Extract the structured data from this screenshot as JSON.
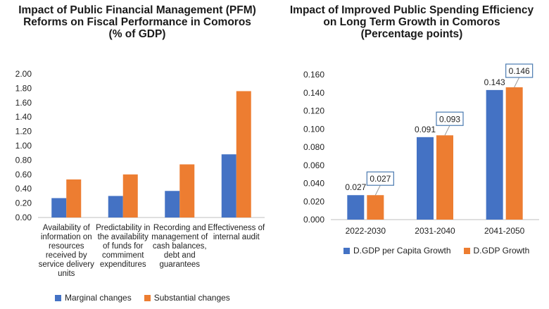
{
  "chart_data": [
    {
      "type": "bar",
      "title_lines": [
        "Impact of Public Financial Management (PFM)",
        "Reforms on Fiscal Performance in Comoros",
        "(% of GDP)"
      ],
      "categories": [
        [
          "Availability of",
          "information on",
          "resources",
          "received by",
          "service delivery",
          "units"
        ],
        [
          "Predictability in",
          "the availability",
          "of funds for",
          "commiment",
          "expenditures"
        ],
        [
          "Recording and",
          "management of",
          "cash balances,",
          "debt and",
          "guarantees"
        ],
        [
          "Effectiveness of",
          "internal audit"
        ]
      ],
      "series": [
        {
          "name": "Marginal changes",
          "color": "#4472C4",
          "values": [
            0.27,
            0.3,
            0.37,
            0.88
          ]
        },
        {
          "name": "Substantial changes",
          "color": "#ED7D31",
          "values": [
            0.53,
            0.6,
            0.74,
            1.76
          ]
        }
      ],
      "ylim": [
        0,
        2.0
      ],
      "yticks": [
        "0.00",
        "0.20",
        "0.40",
        "0.60",
        "0.80",
        "1.00",
        "1.20",
        "1.40",
        "1.60",
        "1.80",
        "2.00"
      ],
      "legend_position": "bottom",
      "grid": false
    },
    {
      "type": "bar",
      "title_lines": [
        "Impact of Improved Public Spending Efficiency",
        "on Long Term Growth in Comoros",
        "(Percentage points)"
      ],
      "categories": [
        "2022-2030",
        "2031-2040",
        "2041-2050"
      ],
      "series": [
        {
          "name": "D.GDP per Capita Growth",
          "color": "#4472C4",
          "values": [
            0.027,
            0.091,
            0.143
          ],
          "labels": [
            "0.027",
            "0.091",
            "0.143"
          ]
        },
        {
          "name": "D.GDP Growth",
          "color": "#ED7D31",
          "values": [
            0.027,
            0.093,
            0.146
          ],
          "labels": [
            "0.027",
            "0.093",
            "0.146"
          ]
        }
      ],
      "ylim": [
        0,
        0.16
      ],
      "yticks": [
        "0.000",
        "0.020",
        "0.040",
        "0.060",
        "0.080",
        "0.100",
        "0.120",
        "0.140",
        "0.160"
      ],
      "legend_position": "bottom",
      "grid": false
    }
  ]
}
